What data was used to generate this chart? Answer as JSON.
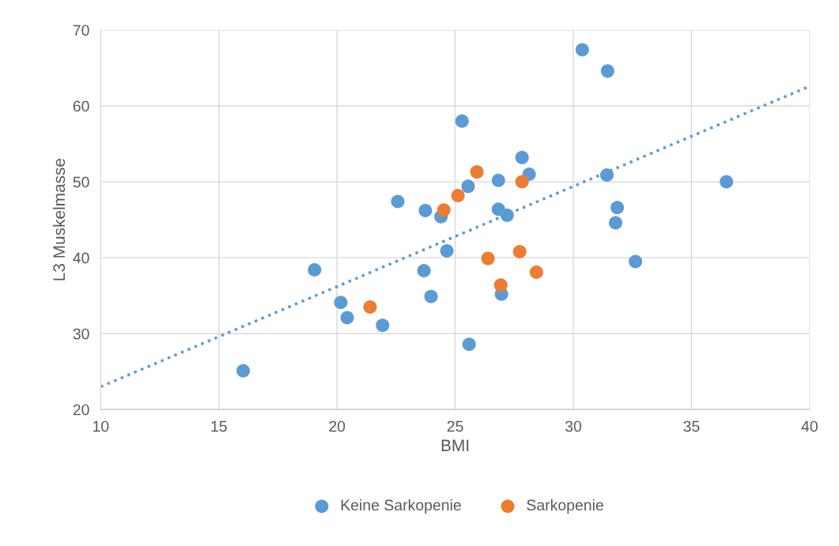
{
  "chart_data": {
    "type": "scatter",
    "xlabel": "BMI",
    "ylabel": "L3 Muskelmasse",
    "xlim": [
      10,
      40
    ],
    "xticks": [
      10,
      15,
      20,
      25,
      30,
      35,
      40
    ],
    "ylim": [
      20,
      70
    ],
    "yticks": [
      20,
      30,
      40,
      50,
      60,
      70
    ],
    "grid": true,
    "legend": "bottom",
    "marker": "circle",
    "series": [
      {
        "name": "Keine Sarkopenie",
        "color": "#5b9bd5",
        "x": [
          16.03,
          19.05,
          20.16,
          20.43,
          21.93,
          22.57,
          23.74,
          23.68,
          23.98,
          24.35,
          24.4,
          24.65,
          25.29,
          25.55,
          25.59,
          26.83,
          26.83,
          27.2,
          26.96,
          27.83,
          28.13,
          30.38,
          31.45,
          31.42,
          31.86,
          31.79,
          32.63,
          36.48
        ],
        "values": [
          25.1,
          38.4,
          34.1,
          32.1,
          31.1,
          47.4,
          46.2,
          38.3,
          34.9,
          null,
          45.4,
          40.9,
          58.0,
          49.4,
          28.6,
          50.2,
          46.4,
          45.6,
          35.2,
          53.2,
          51.0,
          67.4,
          64.6,
          50.9,
          46.6,
          44.6,
          39.5,
          50.0
        ]
      },
      {
        "name": "Sarkopenie",
        "color": "#ed7d31",
        "x": [
          21.4,
          24.52,
          25.12,
          25.92,
          26.39,
          26.93,
          27.73,
          27.83,
          28.44
        ],
        "values": [
          33.5,
          46.3,
          48.2,
          51.3,
          39.9,
          36.4,
          40.8,
          50.0,
          38.1
        ]
      },
      {
        "type": "line",
        "color": "#5b9bd5",
        "line_style": "dotted",
        "marker": "none",
        "x": [
          10,
          40
        ],
        "values": [
          23.0,
          62.6
        ]
      }
    ]
  }
}
